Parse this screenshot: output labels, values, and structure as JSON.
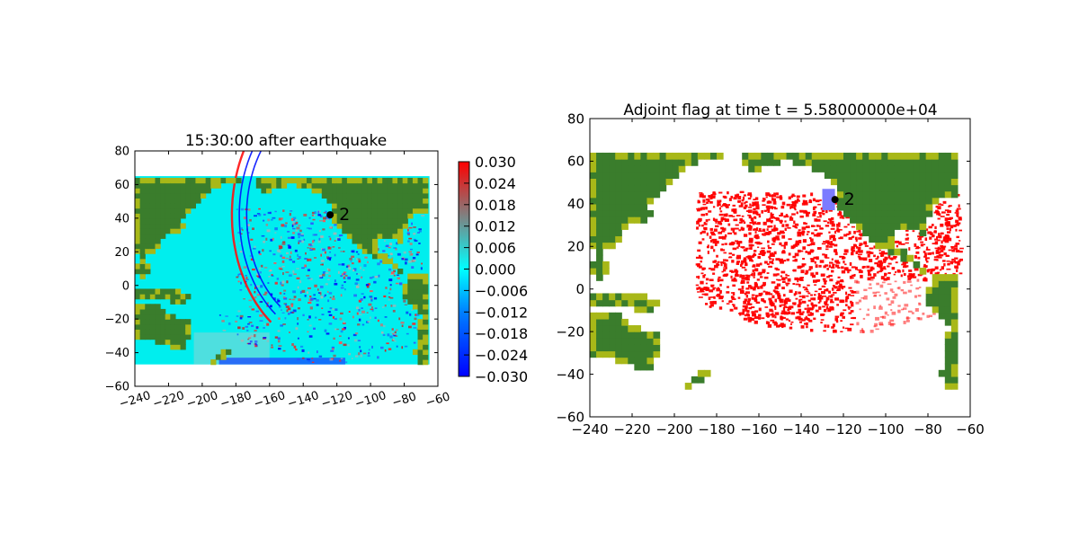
{
  "chart_data": [
    {
      "type": "heatmap",
      "title": "15:30:00 after earthquake",
      "xlabel": "",
      "ylabel": "",
      "xlim": [
        -240,
        -60
      ],
      "ylim": [
        -60,
        80
      ],
      "xticks": [
        "−240",
        "−220",
        "−200",
        "−180",
        "−160",
        "−140",
        "−120",
        "−100",
        "−80",
        "−60"
      ],
      "yticks": [
        "80",
        "60",
        "40",
        "20",
        "0",
        "−20",
        "−40",
        "−60"
      ],
      "data_extent": {
        "lon": [
          -240,
          -65
        ],
        "lat": [
          -47,
          65
        ]
      },
      "colorbar": {
        "range": [
          -0.03,
          0.03
        ],
        "ticks": [
          "0.030",
          "0.024",
          "0.018",
          "0.012",
          "0.006",
          "0.000",
          "−0.006",
          "−0.012",
          "−0.018",
          "−0.024",
          "−0.030"
        ],
        "colors": [
          "#0000ff",
          "#0080ff",
          "#00ffff",
          "#808080",
          "#ff0000"
        ]
      },
      "ocean_color": "#00eeee",
      "land_color": "#3a7d2c",
      "coast_color": "#a8b818",
      "marker": {
        "label": "2",
        "lon": -124,
        "lat": 42
      }
    },
    {
      "type": "heatmap",
      "title": "Adjoint flag at time t = 5.58000000e+04",
      "xlabel": "",
      "ylabel": "",
      "xlim": [
        -240,
        -60
      ],
      "ylim": [
        -60,
        80
      ],
      "xticks": [
        "−240",
        "−220",
        "−200",
        "−180",
        "−160",
        "−140",
        "−120",
        "−100",
        "−80",
        "−60"
      ],
      "yticks": [
        "80",
        "60",
        "40",
        "20",
        "0",
        "−20",
        "−40",
        "−60"
      ],
      "data_extent": {
        "lon": [
          -240,
          -65
        ],
        "lat": [
          -47,
          65
        ]
      },
      "flag_color": "#ff0000",
      "land_color": "#3a7d2c",
      "coast_color": "#a8b818",
      "region_color": "#7b7bff",
      "marker": {
        "label": "2",
        "lon": -124,
        "lat": 42
      }
    }
  ]
}
